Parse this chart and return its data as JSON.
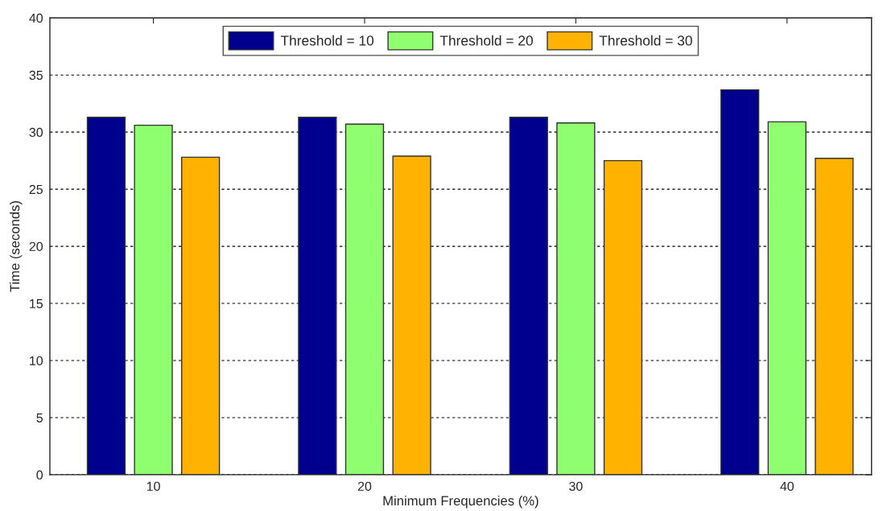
{
  "chart_data": {
    "type": "bar",
    "xlabel": "Minimum Frequencies (%)",
    "ylabel": "Time (seconds)",
    "categories": [
      "10",
      "20",
      "30",
      "40"
    ],
    "series": [
      {
        "name": "Threshold = 10",
        "color": "#00008f",
        "values": [
          31.3,
          31.3,
          31.3,
          33.7
        ]
      },
      {
        "name": "Threshold = 20",
        "color": "#8fff6f",
        "values": [
          30.6,
          30.7,
          30.8,
          30.9
        ]
      },
      {
        "name": "Threshold = 30",
        "color": "#ffb300",
        "values": [
          27.8,
          27.9,
          27.5,
          27.7
        ]
      }
    ],
    "ylim": [
      0,
      40
    ],
    "yticks": [
      0,
      5,
      10,
      15,
      20,
      25,
      30,
      35,
      40
    ],
    "grid": "y",
    "legend": "top"
  }
}
